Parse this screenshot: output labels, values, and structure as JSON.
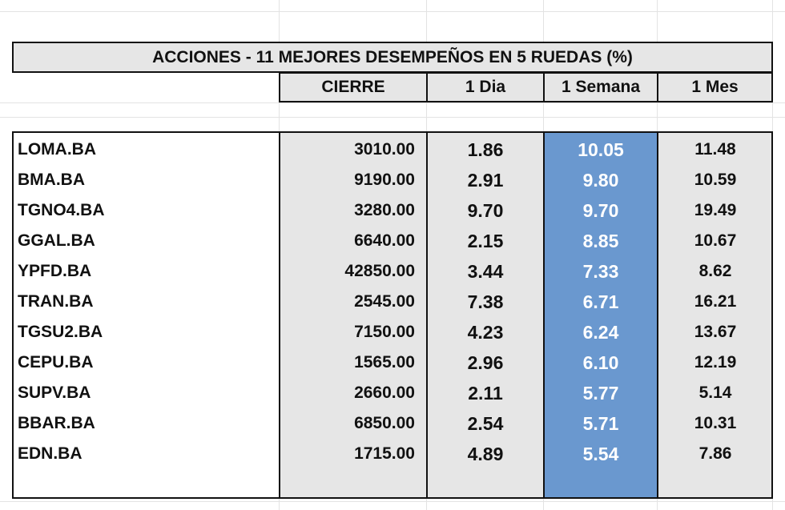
{
  "colors": {
    "header_fill": "#e6e6e6",
    "body_fill": "#e6e6e6",
    "week_highlight": "#6a98cf",
    "week_text": "#ffffff",
    "border": "#111111"
  },
  "table": {
    "title": "ACCIONES   - 11  MEJORES DESEMPEÑOS EN 5 RUEDAS (%)",
    "columns": [
      "CIERRE",
      "1 Dia",
      "1 Semana",
      "1 Mes"
    ],
    "rows": [
      {
        "ticker": "LOMA.BA",
        "cierre": "3010.00",
        "dia": "1.86",
        "semana": "10.05",
        "mes": "11.48"
      },
      {
        "ticker": "BMA.BA",
        "cierre": "9190.00",
        "dia": "2.91",
        "semana": "9.80",
        "mes": "10.59"
      },
      {
        "ticker": "TGNO4.BA",
        "cierre": "3280.00",
        "dia": "9.70",
        "semana": "9.70",
        "mes": "19.49"
      },
      {
        "ticker": "GGAL.BA",
        "cierre": "6640.00",
        "dia": "2.15",
        "semana": "8.85",
        "mes": "10.67"
      },
      {
        "ticker": "YPFD.BA",
        "cierre": "42850.00",
        "dia": "3.44",
        "semana": "7.33",
        "mes": "8.62"
      },
      {
        "ticker": "TRAN.BA",
        "cierre": "2545.00",
        "dia": "7.38",
        "semana": "6.71",
        "mes": "16.21"
      },
      {
        "ticker": "TGSU2.BA",
        "cierre": "7150.00",
        "dia": "4.23",
        "semana": "6.24",
        "mes": "13.67"
      },
      {
        "ticker": "CEPU.BA",
        "cierre": "1565.00",
        "dia": "2.96",
        "semana": "6.10",
        "mes": "12.19"
      },
      {
        "ticker": "SUPV.BA",
        "cierre": "2660.00",
        "dia": "2.11",
        "semana": "5.77",
        "mes": "5.14"
      },
      {
        "ticker": "BBAR.BA",
        "cierre": "6850.00",
        "dia": "2.54",
        "semana": "5.71",
        "mes": "10.31"
      },
      {
        "ticker": "EDN.BA",
        "cierre": "1715.00",
        "dia": "4.89",
        "semana": "5.54",
        "mes": "7.86"
      }
    ]
  }
}
